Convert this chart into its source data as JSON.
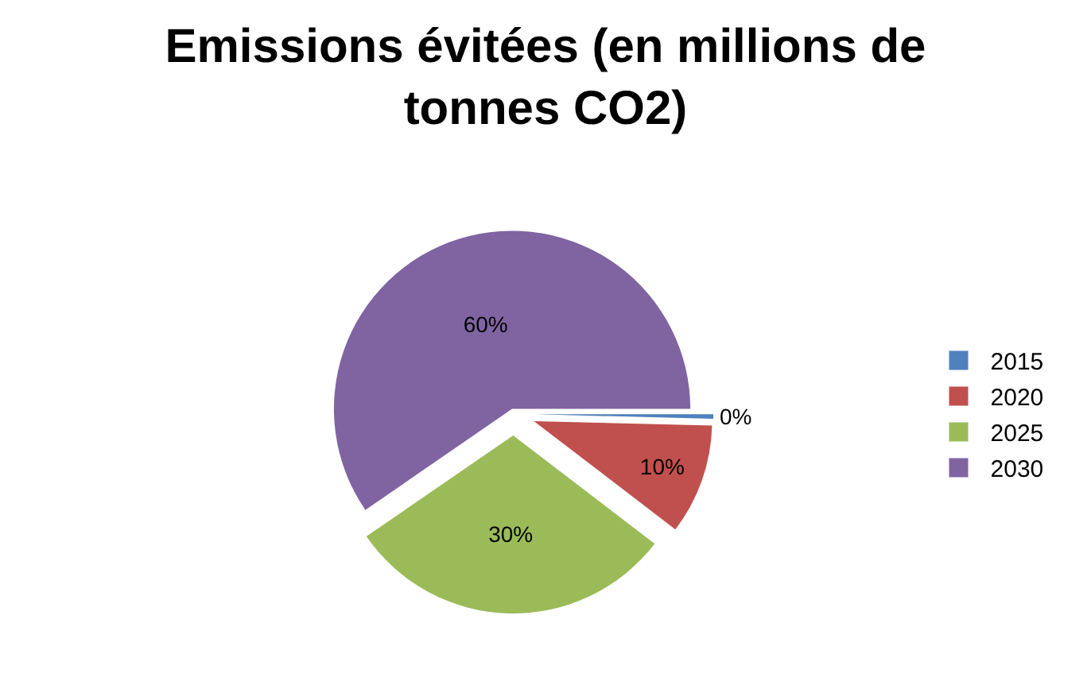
{
  "chart_data": {
    "type": "pie",
    "title": "Emissions évitées (en millions de tonnes CO2)",
    "categories": [
      "2015",
      "2020",
      "2025",
      "2030"
    ],
    "values": [
      0.4,
      10,
      30,
      59.6
    ],
    "value_labels": [
      "0%",
      "10%",
      "30%",
      "60%"
    ],
    "colors": [
      "#4f81bd",
      "#c0504d",
      "#9bbb59",
      "#8064a2"
    ],
    "legend": "right"
  }
}
